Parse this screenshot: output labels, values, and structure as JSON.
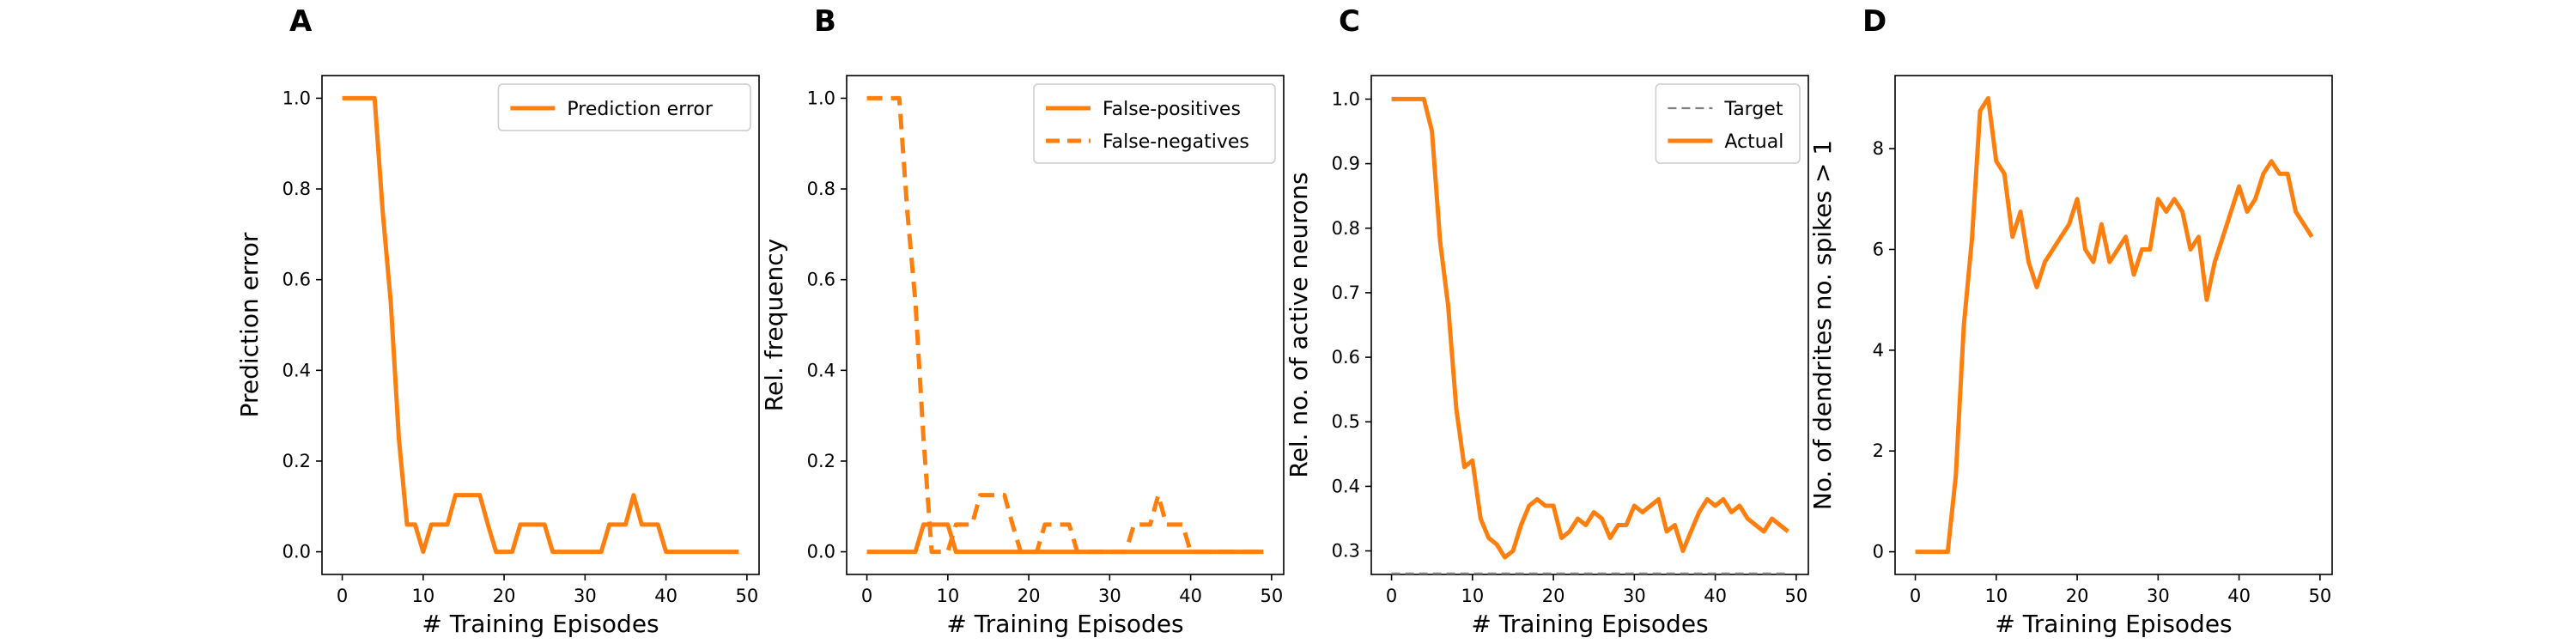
{
  "colors": {
    "orange": "#ff7f0e",
    "target": "#7f7f7f",
    "axis": "#000000",
    "legend_border": "#cccccc"
  },
  "chart_data": [
    {
      "type": "line",
      "panel": "A",
      "xlabel": "# Training Episodes",
      "ylabel": "Prediction error",
      "xlim": [
        -2.5,
        51.5
      ],
      "ylim": [
        -0.05,
        1.05
      ],
      "xticks": [
        0,
        10,
        20,
        30,
        40,
        50
      ],
      "yticks": [
        0.0,
        0.2,
        0.4,
        0.6,
        0.8,
        1.0
      ],
      "ytick_labels": [
        "0.0",
        "0.2",
        "0.4",
        "0.6",
        "0.8",
        "1.0"
      ],
      "grid": false,
      "legend": "top-right",
      "x": [
        0,
        1,
        2,
        3,
        4,
        5,
        6,
        7,
        8,
        9,
        10,
        11,
        12,
        13,
        14,
        15,
        16,
        17,
        18,
        19,
        20,
        21,
        22,
        23,
        24,
        25,
        26,
        27,
        28,
        29,
        30,
        31,
        32,
        33,
        34,
        35,
        36,
        37,
        38,
        39,
        40,
        41,
        42,
        43,
        44,
        45,
        46,
        47,
        48,
        49
      ],
      "series": [
        {
          "name": "Prediction error",
          "style": "solid",
          "values": [
            1.0,
            1.0,
            1.0,
            1.0,
            1.0,
            0.75,
            0.55,
            0.25,
            0.06,
            0.06,
            0.0,
            0.06,
            0.06,
            0.06,
            0.125,
            0.125,
            0.125,
            0.125,
            0.06,
            0.0,
            0.0,
            0.0,
            0.06,
            0.06,
            0.06,
            0.06,
            0.0,
            0.0,
            0.0,
            0.0,
            0.0,
            0.0,
            0.0,
            0.06,
            0.06,
            0.06,
            0.125,
            0.06,
            0.06,
            0.06,
            0.0,
            0.0,
            0.0,
            0.0,
            0.0,
            0.0,
            0.0,
            0.0,
            0.0,
            0.0
          ]
        }
      ]
    },
    {
      "type": "line",
      "panel": "B",
      "xlabel": "# Training Episodes",
      "ylabel": "Rel. frequency",
      "xlim": [
        -2.5,
        51.5
      ],
      "ylim": [
        -0.05,
        1.05
      ],
      "xticks": [
        0,
        10,
        20,
        30,
        40,
        50
      ],
      "yticks": [
        0.0,
        0.2,
        0.4,
        0.6,
        0.8,
        1.0
      ],
      "ytick_labels": [
        "0.0",
        "0.2",
        "0.4",
        "0.6",
        "0.8",
        "1.0"
      ],
      "grid": false,
      "legend": "top-right",
      "x": [
        0,
        1,
        2,
        3,
        4,
        5,
        6,
        7,
        8,
        9,
        10,
        11,
        12,
        13,
        14,
        15,
        16,
        17,
        18,
        19,
        20,
        21,
        22,
        23,
        24,
        25,
        26,
        27,
        28,
        29,
        30,
        31,
        32,
        33,
        34,
        35,
        36,
        37,
        38,
        39,
        40,
        41,
        42,
        43,
        44,
        45,
        46,
        47,
        48,
        49
      ],
      "series": [
        {
          "name": "False-positives",
          "style": "solid",
          "values": [
            0,
            0,
            0,
            0,
            0,
            0,
            0,
            0.06,
            0.06,
            0.06,
            0.06,
            0,
            0,
            0,
            0,
            0,
            0,
            0,
            0,
            0,
            0,
            0,
            0,
            0,
            0,
            0,
            0,
            0,
            0,
            0,
            0,
            0,
            0,
            0,
            0,
            0,
            0,
            0,
            0,
            0,
            0,
            0,
            0,
            0,
            0,
            0,
            0,
            0,
            0,
            0
          ]
        },
        {
          "name": "False-negatives",
          "style": "dashed",
          "values": [
            1.0,
            1.0,
            1.0,
            1.0,
            1.0,
            0.75,
            0.55,
            0.25,
            0.0,
            0.0,
            0.0,
            0.06,
            0.06,
            0.06,
            0.125,
            0.125,
            0.125,
            0.125,
            0.06,
            0.0,
            0.0,
            0.0,
            0.06,
            0.06,
            0.06,
            0.06,
            0.0,
            0.0,
            0.0,
            0.0,
            0.0,
            0.0,
            0.0,
            0.06,
            0.06,
            0.06,
            0.125,
            0.06,
            0.06,
            0.06,
            0.0,
            0.0,
            0.0,
            0.0,
            0.0,
            0.0,
            0.0,
            0.0,
            0.0,
            0.0
          ]
        }
      ]
    },
    {
      "type": "line",
      "panel": "C",
      "xlabel": "# Training Episodes",
      "ylabel": "Rel. no. of active neurons",
      "xlim": [
        -2.5,
        51.5
      ],
      "ylim": [
        0.2635,
        1.0365
      ],
      "xticks": [
        0,
        10,
        20,
        30,
        40,
        50
      ],
      "yticks": [
        0.3,
        0.4,
        0.5,
        0.6,
        0.7,
        0.8,
        0.9,
        1.0
      ],
      "ytick_labels": [
        "0.3",
        "0.4",
        "0.5",
        "0.6",
        "0.7",
        "0.8",
        "0.9",
        "1.0"
      ],
      "grid": false,
      "legend": "top-right",
      "x": [
        0,
        1,
        2,
        3,
        4,
        5,
        6,
        7,
        8,
        9,
        10,
        11,
        12,
        13,
        14,
        15,
        16,
        17,
        18,
        19,
        20,
        21,
        22,
        23,
        24,
        25,
        26,
        27,
        28,
        29,
        30,
        31,
        32,
        33,
        34,
        35,
        36,
        37,
        38,
        39,
        40,
        41,
        42,
        43,
        44,
        45,
        46,
        47,
        48,
        49
      ],
      "series": [
        {
          "name": "Target",
          "style": "dashed",
          "values": [
            0.265,
            0.265,
            0.265,
            0.265,
            0.265,
            0.265,
            0.265,
            0.265,
            0.265,
            0.265,
            0.265,
            0.265,
            0.265,
            0.265,
            0.265,
            0.265,
            0.265,
            0.265,
            0.265,
            0.265,
            0.265,
            0.265,
            0.265,
            0.265,
            0.265,
            0.265,
            0.265,
            0.265,
            0.265,
            0.265,
            0.265,
            0.265,
            0.265,
            0.265,
            0.265,
            0.265,
            0.265,
            0.265,
            0.265,
            0.265,
            0.265,
            0.265,
            0.265,
            0.265,
            0.265,
            0.265,
            0.265,
            0.265,
            0.265,
            0.265
          ]
        },
        {
          "name": "Actual",
          "style": "solid",
          "values": [
            1.0,
            1.0,
            1.0,
            1.0,
            1.0,
            0.95,
            0.78,
            0.68,
            0.52,
            0.43,
            0.44,
            0.35,
            0.32,
            0.31,
            0.29,
            0.3,
            0.34,
            0.37,
            0.38,
            0.37,
            0.37,
            0.32,
            0.33,
            0.35,
            0.34,
            0.36,
            0.35,
            0.32,
            0.34,
            0.34,
            0.37,
            0.36,
            0.37,
            0.38,
            0.33,
            0.34,
            0.3,
            0.33,
            0.36,
            0.38,
            0.37,
            0.38,
            0.36,
            0.37,
            0.35,
            0.34,
            0.33,
            0.35,
            0.34,
            0.33
          ]
        }
      ]
    },
    {
      "type": "line",
      "panel": "D",
      "xlabel": "# Training Episodes",
      "ylabel": "No. of dendrites no. spikes > 1",
      "xlim": [
        -2.5,
        51.5
      ],
      "ylim": [
        -0.45,
        9.45
      ],
      "xticks": [
        0,
        10,
        20,
        30,
        40,
        50
      ],
      "yticks": [
        0,
        2,
        4,
        6,
        8
      ],
      "ytick_labels": [
        "0",
        "2",
        "4",
        "6",
        "8"
      ],
      "grid": false,
      "legend": "none",
      "x": [
        0,
        1,
        2,
        3,
        4,
        5,
        6,
        7,
        8,
        9,
        10,
        11,
        12,
        13,
        14,
        15,
        16,
        17,
        18,
        19,
        20,
        21,
        22,
        23,
        24,
        25,
        26,
        27,
        28,
        29,
        30,
        31,
        32,
        33,
        34,
        35,
        36,
        37,
        38,
        39,
        40,
        41,
        42,
        43,
        44,
        45,
        46,
        47,
        48,
        49
      ],
      "series": [
        {
          "style": "solid",
          "values": [
            0,
            0,
            0,
            0,
            0,
            1.5,
            4.5,
            6.2,
            8.75,
            9.0,
            7.75,
            7.5,
            6.25,
            6.75,
            5.75,
            5.25,
            5.75,
            6.0,
            6.25,
            6.5,
            7.0,
            6.0,
            5.75,
            6.5,
            5.75,
            6.0,
            6.25,
            5.5,
            6.0,
            6.0,
            7.0,
            6.75,
            7.0,
            6.75,
            6.0,
            6.25,
            5.0,
            5.75,
            6.25,
            6.75,
            7.25,
            6.75,
            7.0,
            7.5,
            7.75,
            7.5,
            7.5,
            6.75,
            6.5,
            6.25
          ]
        }
      ]
    }
  ]
}
